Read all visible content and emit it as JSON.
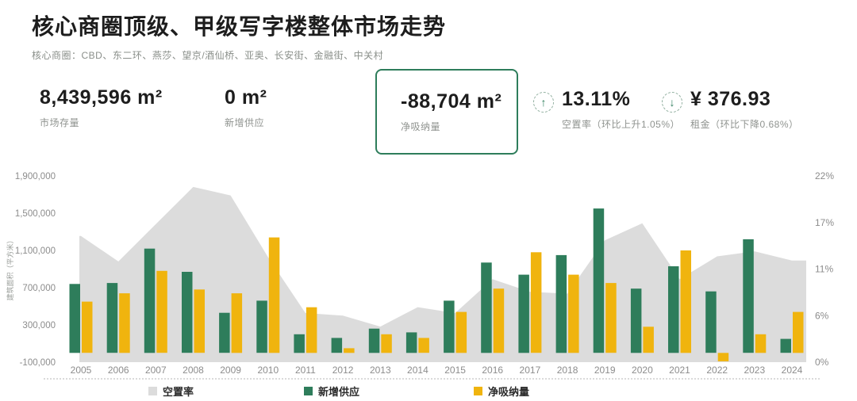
{
  "header": {
    "title": "核心商圈顶级、甲级写字楼整体市场走势",
    "subtitle": "核心商圈：CBD、东二环、燕莎、望京/酒仙桥、亚奥、长安街、金融街、中关村"
  },
  "metrics": {
    "stock": {
      "value": "8,439,596 m²",
      "label": "市场存量"
    },
    "new_supply": {
      "value": "0 m²",
      "label": "新增供应"
    },
    "net_absorption": {
      "value": "-88,704 m²",
      "label": "净吸纳量"
    },
    "vacancy": {
      "value": "13.11%",
      "label": "空置率（环比上升1.05%）",
      "trend": "up",
      "arrow": "↑"
    },
    "rent": {
      "value": "¥ 376.93",
      "label": "租金（环比下降0.68%）",
      "trend": "down",
      "arrow": "↓"
    }
  },
  "colors": {
    "green": "#2E7D5B",
    "yellow": "#F0B40E",
    "gray_area": "#DCDCDC",
    "box_border": "#2E7D5B",
    "text_dark": "#1D1D1D",
    "text_gray": "#8C8C8C"
  },
  "chart_data": {
    "type": "combo",
    "title": "核心商圈顶级、甲级写字楼整体市场走势",
    "categories": [
      2005,
      2006,
      2007,
      2008,
      2009,
      2010,
      2011,
      2012,
      2013,
      2014,
      2015,
      2016,
      2017,
      2018,
      2019,
      2020,
      2021,
      2022,
      2023,
      2024
    ],
    "series": [
      {
        "name": "空置率",
        "type": "area",
        "axis": "right",
        "unit": "%",
        "color": "#DCDCDC",
        "values": [
          14.9,
          11.9,
          16.3,
          20.7,
          19.7,
          12.4,
          5.8,
          5.5,
          4.2,
          6.5,
          5.8,
          9.8,
          8.3,
          8.1,
          14.4,
          16.4,
          9.8,
          12.5,
          13.1,
          12.0
        ]
      },
      {
        "name": "新增供应",
        "type": "bar",
        "axis": "left",
        "unit": "m²",
        "color": "#2E7D5B",
        "values": [
          740000,
          750000,
          1120000,
          870000,
          430000,
          560000,
          200000,
          160000,
          260000,
          220000,
          560000,
          970000,
          840000,
          1050000,
          1550000,
          690000,
          930000,
          660000,
          1220000,
          150000
        ]
      },
      {
        "name": "净吸纳量",
        "type": "bar",
        "axis": "left",
        "unit": "m²",
        "color": "#F0B40E",
        "values": [
          550000,
          640000,
          880000,
          680000,
          640000,
          1240000,
          490000,
          50000,
          200000,
          160000,
          440000,
          690000,
          1080000,
          840000,
          750000,
          280000,
          1100000,
          -90000,
          200000,
          440000
        ]
      }
    ],
    "y_left": {
      "title": "建筑面积（平方米）",
      "min": -100000,
      "max": 1900000,
      "tick_step": 400000,
      "tick_labels": [
        "-100,000",
        "300,000",
        "700,000",
        "1,100,000",
        "1,500,000",
        "1,900,000"
      ]
    },
    "y_right": {
      "min": 0,
      "max": 22,
      "tick_values": [
        0,
        5.5,
        11,
        16.5,
        22
      ],
      "tick_labels": [
        "0%",
        "6%",
        "11%",
        "17%",
        "22%"
      ]
    },
    "grid": false,
    "legend_position": "bottom"
  }
}
